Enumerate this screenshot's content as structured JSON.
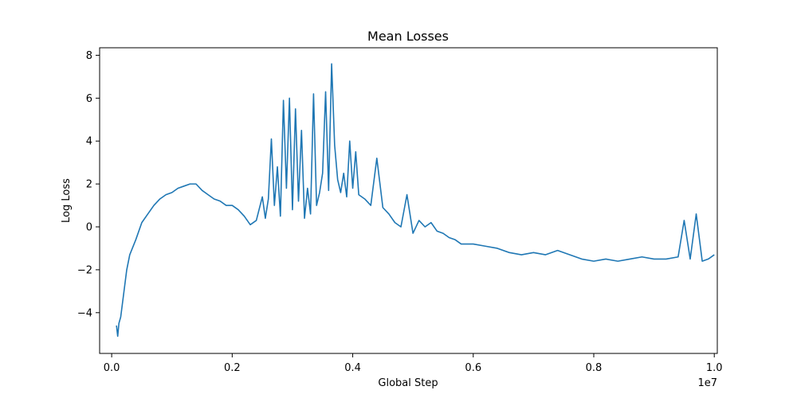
{
  "chart_data": {
    "type": "line",
    "title": "Mean Losses",
    "xlabel": "Global Step",
    "ylabel": "Log Loss",
    "x_offset_label": "1e7",
    "xlim": [
      -0.02,
      1.005
    ],
    "ylim": [
      -5.9,
      8.35
    ],
    "x_ticks": [
      0.0,
      0.2,
      0.4,
      0.6,
      0.8,
      1.0
    ],
    "x_tick_labels": [
      "0.0",
      "0.2",
      "0.4",
      "0.6",
      "0.8",
      "1.0"
    ],
    "y_ticks": [
      -4,
      -2,
      0,
      2,
      4,
      6,
      8
    ],
    "y_tick_labels": [
      "−4",
      "−2",
      "0",
      "2",
      "4",
      "6",
      "8"
    ],
    "grid": false,
    "series": [
      {
        "color": "#1f77b4",
        "x": [
          0.008,
          0.01,
          0.012,
          0.015,
          0.02,
          0.025,
          0.03,
          0.04,
          0.05,
          0.06,
          0.07,
          0.08,
          0.09,
          0.1,
          0.11,
          0.12,
          0.13,
          0.14,
          0.15,
          0.16,
          0.17,
          0.18,
          0.19,
          0.2,
          0.21,
          0.22,
          0.23,
          0.24,
          0.25,
          0.255,
          0.26,
          0.265,
          0.27,
          0.275,
          0.28,
          0.285,
          0.29,
          0.295,
          0.3,
          0.305,
          0.31,
          0.315,
          0.32,
          0.325,
          0.33,
          0.335,
          0.34,
          0.345,
          0.35,
          0.355,
          0.36,
          0.365,
          0.37,
          0.375,
          0.38,
          0.385,
          0.39,
          0.395,
          0.4,
          0.405,
          0.41,
          0.42,
          0.43,
          0.44,
          0.45,
          0.46,
          0.47,
          0.48,
          0.49,
          0.5,
          0.51,
          0.52,
          0.53,
          0.54,
          0.55,
          0.56,
          0.57,
          0.58,
          0.6,
          0.62,
          0.64,
          0.66,
          0.68,
          0.7,
          0.72,
          0.74,
          0.76,
          0.78,
          0.8,
          0.82,
          0.84,
          0.86,
          0.88,
          0.9,
          0.92,
          0.94,
          0.95,
          0.96,
          0.97,
          0.98,
          0.99,
          1.0
        ],
        "y": [
          -4.6,
          -5.1,
          -4.5,
          -4.2,
          -3.1,
          -2.0,
          -1.3,
          -0.6,
          0.2,
          0.6,
          1.0,
          1.3,
          1.5,
          1.6,
          1.8,
          1.9,
          2.0,
          2.0,
          1.7,
          1.5,
          1.3,
          1.2,
          1.0,
          1.0,
          0.8,
          0.5,
          0.1,
          0.3,
          1.4,
          0.4,
          1.3,
          4.1,
          1.0,
          2.8,
          0.5,
          5.9,
          1.8,
          6.0,
          0.8,
          5.5,
          1.2,
          4.5,
          0.4,
          1.8,
          0.6,
          6.2,
          1.0,
          1.6,
          2.5,
          6.3,
          1.7,
          7.6,
          3.8,
          2.2,
          1.6,
          2.5,
          1.4,
          4.0,
          1.8,
          3.5,
          1.5,
          1.3,
          1.0,
          3.2,
          0.9,
          0.6,
          0.2,
          0.0,
          1.5,
          -0.3,
          0.3,
          0.0,
          0.2,
          -0.2,
          -0.3,
          -0.5,
          -0.6,
          -0.8,
          -0.8,
          -0.9,
          -1.0,
          -1.2,
          -1.3,
          -1.2,
          -1.3,
          -1.1,
          -1.3,
          -1.5,
          -1.6,
          -1.5,
          -1.6,
          -1.5,
          -1.4,
          -1.5,
          -1.5,
          -1.4,
          0.3,
          -1.5,
          0.6,
          -1.6,
          -1.5,
          -1.3
        ]
      }
    ]
  }
}
